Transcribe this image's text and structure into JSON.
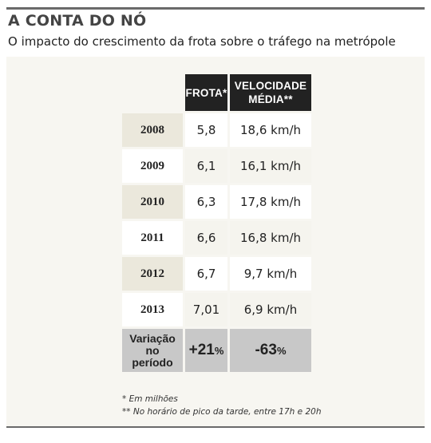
{
  "header": {
    "title": "A CONTA DO NÓ",
    "subtitle": "O impacto do crescimento da frota sobre o tráfego na metrópole"
  },
  "chart_data": {
    "type": "table",
    "columns": [
      "FROTA*",
      "VELOCIDADE MÉDIA**"
    ],
    "column_lines": [
      [
        "FROTA*"
      ],
      [
        "VELOCIDADE",
        "MÉDIA**"
      ]
    ],
    "rows": [
      {
        "year": "2008",
        "frota": "5,8",
        "velocidade": "18,6 km/h"
      },
      {
        "year": "2009",
        "frota": "6,1",
        "velocidade": "16,1 km/h"
      },
      {
        "year": "2010",
        "frota": "6,3",
        "velocidade": "17,8 km/h"
      },
      {
        "year": "2011",
        "frota": "6,6",
        "velocidade": "16,8 km/h"
      },
      {
        "year": "2012",
        "frota": "6,7",
        "velocidade": "9,7 km/h"
      },
      {
        "year": "2013",
        "frota": "7,01",
        "velocidade": "6,9 km/h"
      }
    ],
    "variation": {
      "label_lines": [
        "Variação",
        "no",
        "período"
      ],
      "frota_number": "+21",
      "velocidade_number": "-63",
      "unit": "%"
    }
  },
  "notes": {
    "note1": "* Em milhões",
    "note2": "** No horário de pico da tarde, entre 17h e 20h"
  }
}
